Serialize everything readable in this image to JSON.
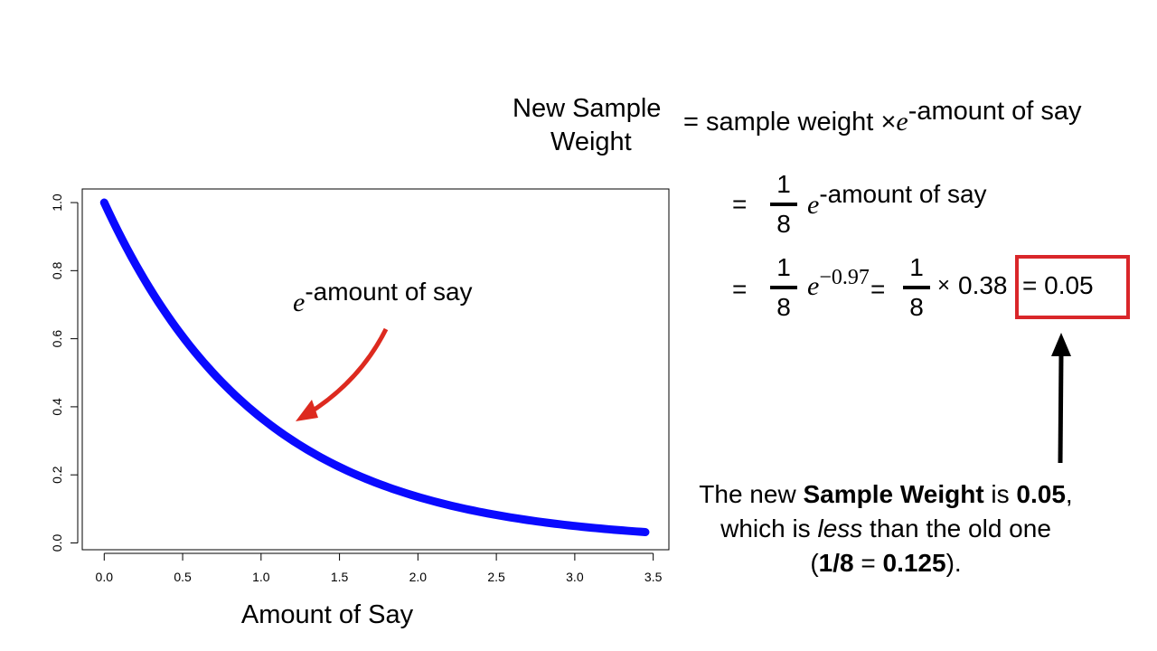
{
  "formula": {
    "lhs_line1": "New Sample",
    "lhs_line2": "Weight",
    "row1": {
      "eq": "= sample weight",
      "times": "×",
      "e": "e",
      "exponent": "-amount of say"
    },
    "row2": {
      "eq": "=",
      "num": "1",
      "den": "8",
      "e": "e",
      "exponent": "-amount of say"
    },
    "row3": {
      "eq": "=",
      "num": "1",
      "den": "8",
      "e": "e",
      "exponent": "−0.97",
      "eq2": "=",
      "num2": "1",
      "den2": "8",
      "times": "×",
      "factor": "0.38",
      "result": "= 0.05"
    }
  },
  "colors": {
    "curve": "#0a0aff",
    "arrow": "#dd2a1f",
    "highlight_box": "#d9262a",
    "black_arrow": "#000000"
  },
  "note": {
    "l1a": "The new ",
    "l1b": "Sample Weight",
    "l1c": " is ",
    "l1d": "0.05",
    "l1e": ",",
    "l2a": "which is ",
    "l2b": "less",
    "l2c": " than the old one",
    "l3a": "(",
    "l3b": "1/8",
    "l3c": " = ",
    "l3d": "0.125",
    "l3e": ")."
  },
  "chart_data": {
    "type": "line",
    "function": "y = e^(-x)",
    "x_range": [
      0,
      3.45
    ],
    "xlim": [
      -0.14,
      3.6
    ],
    "ylim": [
      -0.02,
      1.04
    ],
    "xticks": [
      "0.0",
      "0.5",
      "1.0",
      "1.5",
      "2.0",
      "2.5",
      "3.0",
      "3.5"
    ],
    "xtick_values": [
      0,
      0.5,
      1.0,
      1.5,
      2.0,
      2.5,
      3.0,
      3.5
    ],
    "yticks": [
      "0.0",
      "0.2",
      "0.4",
      "0.6",
      "0.8",
      "1.0"
    ],
    "ytick_values": [
      0,
      0.2,
      0.4,
      0.6,
      0.8,
      1.0
    ],
    "xlabel": "Amount of Say",
    "ylabel": "",
    "grid": false,
    "annotation": {
      "e": "e",
      "text": "-amount of say",
      "points_to_x": 1.2
    }
  }
}
